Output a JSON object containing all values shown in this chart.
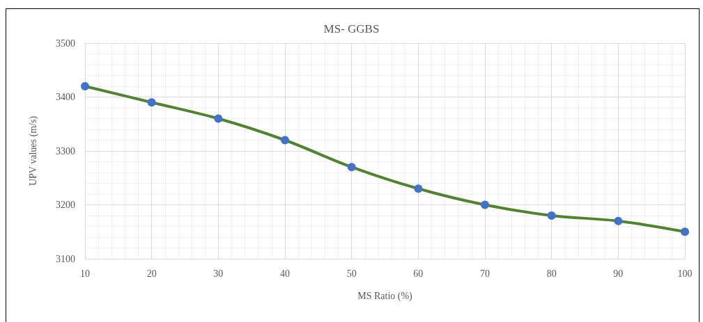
{
  "chart_data": {
    "type": "line",
    "title": "MS- GGBS",
    "xlabel": "MS Ratio (%)",
    "ylabel": "UPV values (m/s)",
    "x": [
      10,
      20,
      30,
      40,
      50,
      60,
      70,
      80,
      90,
      100
    ],
    "series": [
      {
        "color": "#548235",
        "colors": [
          "#4472c4",
          "#4472c4",
          "#4472c4",
          "#4472c4",
          "#4472c4",
          "#4472c4",
          "#4472c4",
          "#4472c4",
          "#4472c4",
          "#4472c4"
        ],
        "values": [
          3420,
          3390,
          3360,
          3320,
          3270,
          3230,
          3200,
          3180,
          3170,
          3150
        ]
      }
    ],
    "xlim": [
      10,
      100
    ],
    "xticks": [
      10,
      20,
      30,
      40,
      50,
      60,
      70,
      80,
      90,
      100
    ],
    "ylim": [
      3100,
      3500
    ],
    "yticks": [
      3100,
      3200,
      3300,
      3400,
      3500
    ],
    "grid": true,
    "marker": "circle",
    "line_style": "solid"
  }
}
